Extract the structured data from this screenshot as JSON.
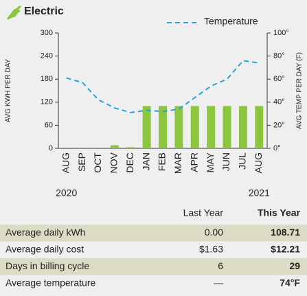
{
  "header": {
    "title": "Electric"
  },
  "chart_data": {
    "type": "bar",
    "categories": [
      "AUG",
      "SEP",
      "OCT",
      "NOV",
      "DEC",
      "JAN",
      "FEB",
      "MAR",
      "APR",
      "MAY",
      "JUN",
      "JUL",
      "AUG"
    ],
    "year_labels": [
      "2020",
      "2021"
    ],
    "ylabel": "AVG KWH PER DAY",
    "y2label": "AVG TEMP PER DAY (F)",
    "ylim": [
      0,
      300
    ],
    "yticks": [
      0,
      60,
      120,
      180,
      240,
      300
    ],
    "y2lim": [
      0,
      100
    ],
    "y2ticks": [
      {
        "value": 0,
        "label": "0°"
      },
      {
        "value": 20,
        "label": "20°"
      },
      {
        "value": 40,
        "label": "40°"
      },
      {
        "value": 60,
        "label": "60°"
      },
      {
        "value": 80,
        "label": "80°"
      },
      {
        "value": 100,
        "label": "100°"
      }
    ],
    "series": [
      {
        "type": "bar",
        "color": "#8cc63f",
        "values": [
          0,
          0,
          0,
          8,
          3,
          110,
          110,
          110,
          110,
          110,
          110,
          110,
          110
        ]
      },
      {
        "type": "line",
        "name": "Temperature",
        "axis": "y2",
        "color": "#1fa6d8",
        "values": [
          61,
          57,
          42,
          35,
          31,
          33,
          32,
          34,
          44,
          54,
          60,
          76,
          74
        ]
      }
    ]
  },
  "table": {
    "columns": [
      "Last Year",
      "This Year"
    ],
    "rows": [
      [
        "Average daily kWh",
        "0.00",
        "108.71"
      ],
      [
        "Average daily cost",
        "$1.63",
        "$12.21"
      ],
      [
        "Days in billing cycle",
        "6",
        "29"
      ],
      [
        "Average temperature",
        "—",
        "74°F"
      ]
    ]
  }
}
